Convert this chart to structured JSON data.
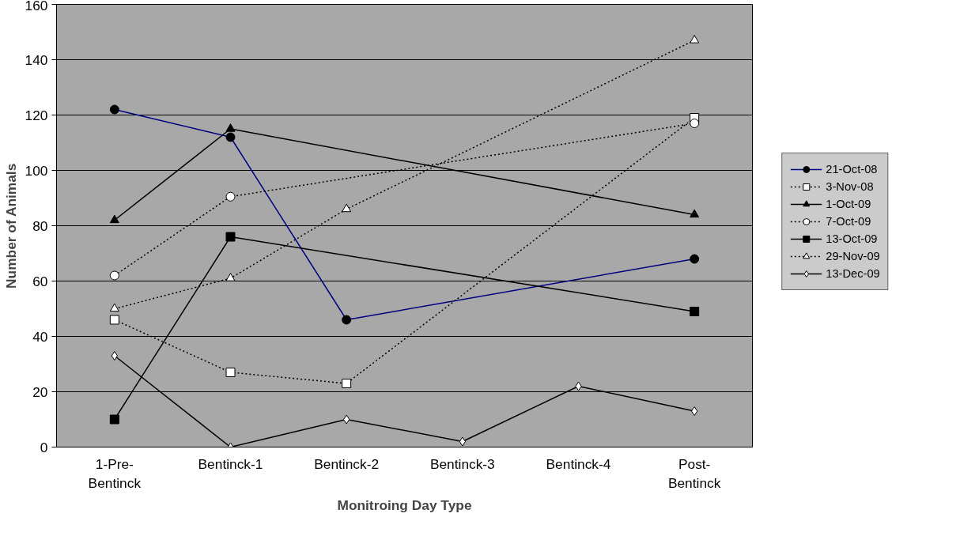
{
  "chart_data": {
    "type": "line",
    "xlabel": "Monitroing Day Type",
    "ylabel": "Number of Animals",
    "categories": [
      "1-Pre-\nBentinck",
      "Bentinck-1",
      "Bentinck-2",
      "Bentinck-3",
      "Bentinck-4",
      "Post-\nBentinck"
    ],
    "ylim": [
      0,
      160
    ],
    "yticks": [
      0,
      20,
      40,
      60,
      80,
      100,
      120,
      140,
      160
    ],
    "grid": "y",
    "legend": "right",
    "series": [
      {
        "name": "21-Oct-08",
        "color": "#000080",
        "marker": "circle",
        "colors": [
          "#000000",
          "#000000",
          "#000000",
          null,
          null,
          "#000000"
        ],
        "line_style": "solid",
        "values": [
          122,
          112,
          46,
          null,
          null,
          68
        ]
      },
      {
        "name": "3-Nov-08",
        "color": "#000000",
        "marker": "square",
        "colors": [
          "#ffffff",
          "#ffffff",
          "#ffffff",
          null,
          null,
          "#ffffff"
        ],
        "line_style": "dotted",
        "values": [
          46,
          27,
          23,
          null,
          null,
          119
        ]
      },
      {
        "name": "1-Oct-09",
        "color": "#000000",
        "marker": "triangle",
        "colors": [
          "#000000",
          "#000000",
          null,
          null,
          null,
          "#000000"
        ],
        "line_style": "solid",
        "values": [
          82,
          115,
          null,
          null,
          null,
          84
        ]
      },
      {
        "name": "7-Oct-09",
        "color": "#000000",
        "marker": "circle",
        "colors": [
          "#ffffff",
          "#ffffff",
          null,
          null,
          null,
          "#ffffff"
        ],
        "line_style": "dotted",
        "values": [
          62,
          90.5,
          null,
          null,
          null,
          117
        ]
      },
      {
        "name": "13-Oct-09",
        "color": "#000000",
        "marker": "square",
        "colors": [
          "#000000",
          "#000000",
          null,
          null,
          null,
          "#000000"
        ],
        "line_style": "solid",
        "values": [
          10,
          76,
          null,
          null,
          null,
          49
        ]
      },
      {
        "name": "29-Nov-09",
        "color": "#000000",
        "marker": "triangle",
        "colors": [
          "#ffffff",
          "#ffffff",
          "#ffffff",
          null,
          null,
          "#ffffff"
        ],
        "line_style": "dotted",
        "values": [
          50,
          61,
          86,
          null,
          null,
          147
        ]
      },
      {
        "name": "13-Dec-09",
        "color": "#000000",
        "marker": "diamond",
        "colors": [
          "#ffffff",
          "#ffffff",
          "#ffffff",
          "#ffffff",
          "#ffffff",
          "#ffffff"
        ],
        "line_style": "solid",
        "values": [
          33,
          0,
          10,
          2,
          22,
          13
        ]
      }
    ]
  }
}
